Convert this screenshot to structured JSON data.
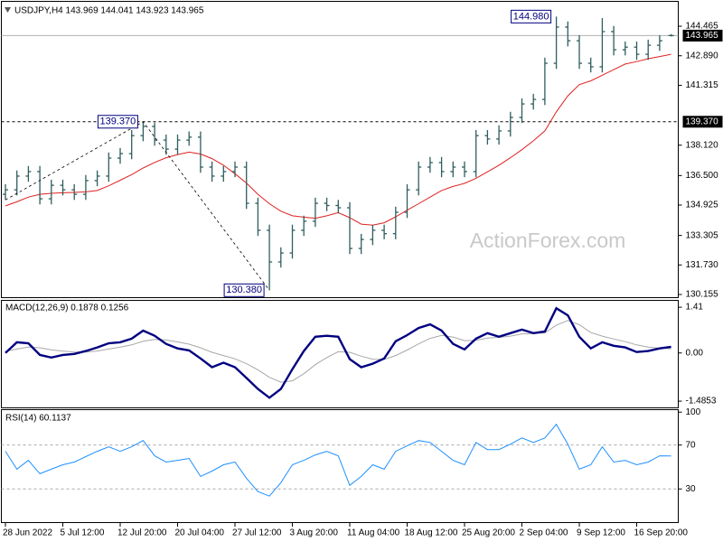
{
  "chart_data": [
    {
      "type": "ohlc",
      "title": "USDJPY,H4  143.969 144.041 143.923 143.965",
      "categories": [
        "28 Jun 2022",
        null,
        null,
        null,
        null,
        "5 Jul 12:00",
        null,
        null,
        null,
        null,
        "12 Jul 20:00",
        null,
        null,
        null,
        null,
        "20 Jul 04:00",
        null,
        null,
        null,
        null,
        "27 Jul 12:00",
        null,
        null,
        null,
        null,
        "3 Aug 20:00",
        null,
        null,
        null,
        null,
        "11 Aug 04:00",
        null,
        null,
        null,
        null,
        "18 Aug 12:00",
        null,
        null,
        null,
        null,
        "25 Aug 20:00",
        null,
        null,
        null,
        null,
        "2 Sep 04:00",
        null,
        null,
        null,
        null,
        "9 Sep 12:00",
        null,
        null,
        null,
        null,
        "16 Sep 20:00",
        null,
        null,
        null
      ],
      "open": [
        135.5,
        135.74,
        136.47,
        136.71,
        135.26,
        135.98,
        135.74,
        135.5,
        136.23,
        136.47,
        137.43,
        137.67,
        138.63,
        139.12,
        138.39,
        137.91,
        138.39,
        138.55,
        136.95,
        136.47,
        136.71,
        136.95,
        135.02,
        133.58,
        131.89,
        132.37,
        133.58,
        134.06,
        135.02,
        134.9,
        134.78,
        132.61,
        133.09,
        133.58,
        133.4,
        134.54,
        135.74,
        136.95,
        137.19,
        136.71,
        136.95,
        136.71,
        138.63,
        138.45,
        138.88,
        139.6,
        140.32,
        140.56,
        142.49,
        144.42,
        143.69,
        142.49,
        142.3,
        144.18,
        143.21,
        143.35,
        142.97,
        143.45,
        143.969
      ],
      "high": [
        136.04,
        136.77,
        137.01,
        137.01,
        136.28,
        136.28,
        136.04,
        136.53,
        136.77,
        137.73,
        137.97,
        138.93,
        139.37,
        139.32,
        138.69,
        138.69,
        138.85,
        138.85,
        137.25,
        137.01,
        137.25,
        137.25,
        135.32,
        133.88,
        132.67,
        133.88,
        134.36,
        135.32,
        135.32,
        135.2,
        135.08,
        133.39,
        133.88,
        133.88,
        134.84,
        136.04,
        137.25,
        137.49,
        137.49,
        137.25,
        137.25,
        138.93,
        138.93,
        139.18,
        139.9,
        140.62,
        140.86,
        142.79,
        144.98,
        144.72,
        143.99,
        142.79,
        144.9,
        144.48,
        143.65,
        143.65,
        143.75,
        143.99,
        144.041
      ],
      "low": [
        135.2,
        135.44,
        136.17,
        134.96,
        134.96,
        135.44,
        135.2,
        135.2,
        135.93,
        136.17,
        137.13,
        137.37,
        138.33,
        138.09,
        137.61,
        137.61,
        138.09,
        136.65,
        136.17,
        136.17,
        136.41,
        134.72,
        133.28,
        130.38,
        131.59,
        132.07,
        133.28,
        133.76,
        134.6,
        134.48,
        132.31,
        132.31,
        132.79,
        133.1,
        133.1,
        134.24,
        135.44,
        136.65,
        136.41,
        136.41,
        136.41,
        136.41,
        138.15,
        138.15,
        138.58,
        139.3,
        140.02,
        140.26,
        142.19,
        143.39,
        142.19,
        142.0,
        142.0,
        142.91,
        142.91,
        142.67,
        142.67,
        143.15,
        143.923
      ],
      "close": [
        135.74,
        136.47,
        136.71,
        135.26,
        135.98,
        135.74,
        135.5,
        136.23,
        136.47,
        137.43,
        137.67,
        138.63,
        139.12,
        138.39,
        137.91,
        138.39,
        138.55,
        136.95,
        136.47,
        136.71,
        136.95,
        135.02,
        133.58,
        131.89,
        132.37,
        133.58,
        134.06,
        135.02,
        134.9,
        134.78,
        132.61,
        133.09,
        133.58,
        133.4,
        134.54,
        135.74,
        136.95,
        137.19,
        136.71,
        136.95,
        136.71,
        138.63,
        138.45,
        138.88,
        139.6,
        140.32,
        140.56,
        142.49,
        144.42,
        143.69,
        142.49,
        142.3,
        144.18,
        143.21,
        143.35,
        142.97,
        143.45,
        143.69,
        143.965
      ],
      "color": "#2f5e5e",
      "ma": {
        "color": "#e02020",
        "values": [
          134.88,
          135.1,
          135.35,
          135.5,
          135.55,
          135.58,
          135.6,
          135.63,
          135.7,
          135.95,
          136.25,
          136.55,
          136.9,
          137.2,
          137.45,
          137.62,
          137.75,
          137.65,
          137.4,
          137.05,
          136.6,
          136.1,
          135.5,
          135.0,
          134.6,
          134.35,
          134.28,
          134.22,
          134.35,
          134.52,
          134.25,
          133.91,
          133.85,
          133.98,
          134.3,
          134.65,
          135.0,
          135.35,
          135.7,
          135.92,
          136.08,
          136.35,
          136.7,
          137.05,
          137.45,
          137.88,
          138.35,
          138.88,
          139.9,
          140.75,
          141.35,
          141.55,
          141.85,
          142.15,
          142.45,
          142.58,
          142.73,
          142.85,
          142.97
        ]
      },
      "ylim": [
        130.01,
        145.72
      ],
      "yticks": [
        144.465,
        {
          "value": 142.89,
          "label": "142.890"
        },
        141.315,
        {
          "value": 138.12,
          "label": "138.120"
        },
        {
          "value": 136.5,
          "label": "136.500"
        },
        134.925,
        133.305,
        {
          "value": 131.73,
          "label": "131.730"
        },
        130.155
      ],
      "hline": {
        "value": 139.37,
        "label": "139.370"
      },
      "last_price": {
        "value": 143.965,
        "label": "143.965"
      },
      "annotations": [
        {
          "value": 144.98,
          "label": "144.980"
        },
        {
          "value": 139.37,
          "label": "139.370"
        },
        {
          "value": 130.38,
          "label": "130.380"
        }
      ],
      "watermark": "ActionForex.com"
    },
    {
      "type": "line",
      "title": "MACD(12,26,9) 0.1878 0.1256",
      "series": [
        {
          "color": "#000080",
          "values": [
            0.0,
            0.33,
            0.3,
            -0.06,
            -0.14,
            -0.06,
            -0.03,
            0.06,
            0.17,
            0.3,
            0.33,
            0.44,
            0.69,
            0.53,
            0.28,
            0.14,
            0.08,
            -0.17,
            -0.44,
            -0.3,
            -0.44,
            -0.77,
            -1.11,
            -1.38,
            -1.11,
            -0.5,
            0.06,
            0.5,
            0.53,
            0.5,
            -0.19,
            -0.44,
            -0.33,
            -0.17,
            0.36,
            0.55,
            0.77,
            0.88,
            0.69,
            0.28,
            0.11,
            0.44,
            0.61,
            0.5,
            0.61,
            0.72,
            0.61,
            0.66,
            1.38,
            1.16,
            0.5,
            0.14,
            0.33,
            0.22,
            0.17,
            0.03,
            0.06,
            0.14,
            0.19
          ]
        },
        {
          "color": "#a8a8a8",
          "values": [
            0.05,
            0.12,
            0.18,
            0.16,
            0.1,
            0.06,
            0.03,
            0.03,
            0.06,
            0.12,
            0.18,
            0.25,
            0.36,
            0.42,
            0.4,
            0.34,
            0.27,
            0.16,
            0.02,
            -0.08,
            -0.18,
            -0.33,
            -0.52,
            -0.75,
            -0.9,
            -0.86,
            -0.64,
            -0.36,
            -0.14,
            0.04,
            0.02,
            -0.1,
            -0.19,
            -0.2,
            -0.08,
            0.09,
            0.28,
            0.45,
            0.54,
            0.49,
            0.38,
            0.39,
            0.46,
            0.48,
            0.52,
            0.59,
            0.6,
            0.62,
            0.86,
            1.0,
            0.87,
            0.63,
            0.52,
            0.43,
            0.35,
            0.25,
            0.18,
            0.15,
            0.13
          ]
        }
      ],
      "ylim": [
        -1.65,
        1.58
      ],
      "yticks": [
        1.41,
        {
          "value": 0,
          "label": "0.00"
        },
        -1.4853
      ]
    },
    {
      "type": "line",
      "title": "RSI(14) 60.1137",
      "series": [
        {
          "color": "#1e90ff",
          "values": [
            64.3,
            48.0,
            56.1,
            43.9,
            48.0,
            52.0,
            54.5,
            59.4,
            64.3,
            68.4,
            64.3,
            68.4,
            74.1,
            60.2,
            54.5,
            56.1,
            57.8,
            41.4,
            46.3,
            52.0,
            54.5,
            39.8,
            27.6,
            23.5,
            35.7,
            52.0,
            56.1,
            61.0,
            64.3,
            60.2,
            33.3,
            41.4,
            52.0,
            48.0,
            64.3,
            69.2,
            74.1,
            72.4,
            64.3,
            56.1,
            52.0,
            72.4,
            65.9,
            65.9,
            70.8,
            76.5,
            72.4,
            76.5,
            88.8,
            70.8,
            48.0,
            52.0,
            68.4,
            54.5,
            56.1,
            52.0,
            54.5,
            60.2,
            60.1
          ]
        }
      ],
      "ylim": [
        0.6,
        101
      ],
      "yticks": [
        100,
        70,
        30
      ],
      "levels": [
        70,
        30
      ]
    }
  ]
}
